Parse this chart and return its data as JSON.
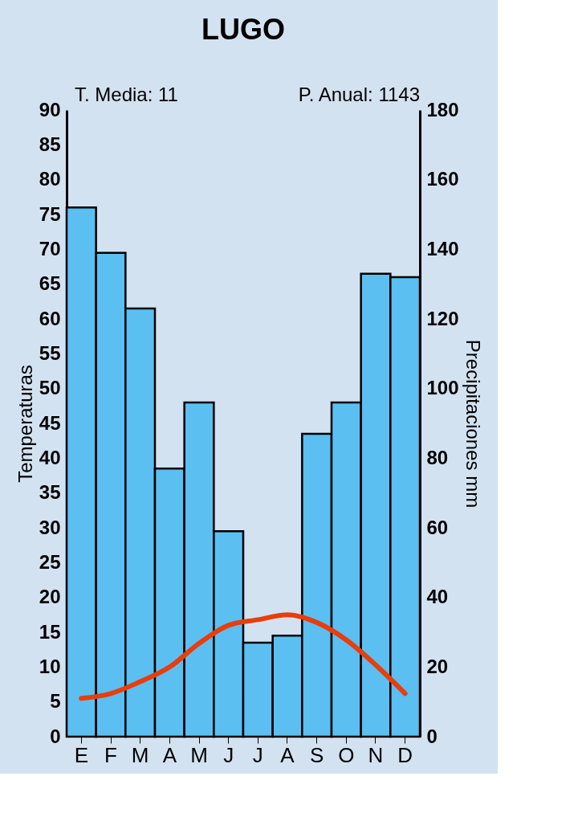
{
  "chart_data": {
    "type": "bar",
    "title": "LUGO",
    "annotations": [
      "T. Media: 11",
      "P. Anual: 1143"
    ],
    "categories": [
      "E",
      "F",
      "M",
      "A",
      "M",
      "J",
      "J",
      "A",
      "S",
      "O",
      "N",
      "D"
    ],
    "ylabel": "Temperaturas",
    "y2label": "Precipitaciones mm",
    "ylim": [
      0,
      90
    ],
    "yticks": [
      0,
      5,
      10,
      15,
      20,
      25,
      30,
      35,
      40,
      45,
      50,
      55,
      60,
      65,
      70,
      75,
      80,
      85,
      90
    ],
    "y2lim": [
      0,
      180
    ],
    "y2ticks": [
      0,
      20,
      40,
      60,
      80,
      100,
      120,
      140,
      160,
      180
    ],
    "grid": false,
    "legend": false,
    "series": [
      {
        "axis": "y2",
        "color": "#5bbff2",
        "values": [
          152,
          139,
          123,
          77,
          96,
          59,
          27,
          29,
          87,
          96,
          133,
          132
        ]
      },
      {
        "type": "line",
        "axis": "y",
        "color": "#e83e0c",
        "values": [
          5.5,
          6.2,
          7.9,
          10,
          13.4,
          16,
          16.8,
          17.5,
          16.4,
          13.9,
          10.3,
          6.2
        ]
      }
    ]
  }
}
